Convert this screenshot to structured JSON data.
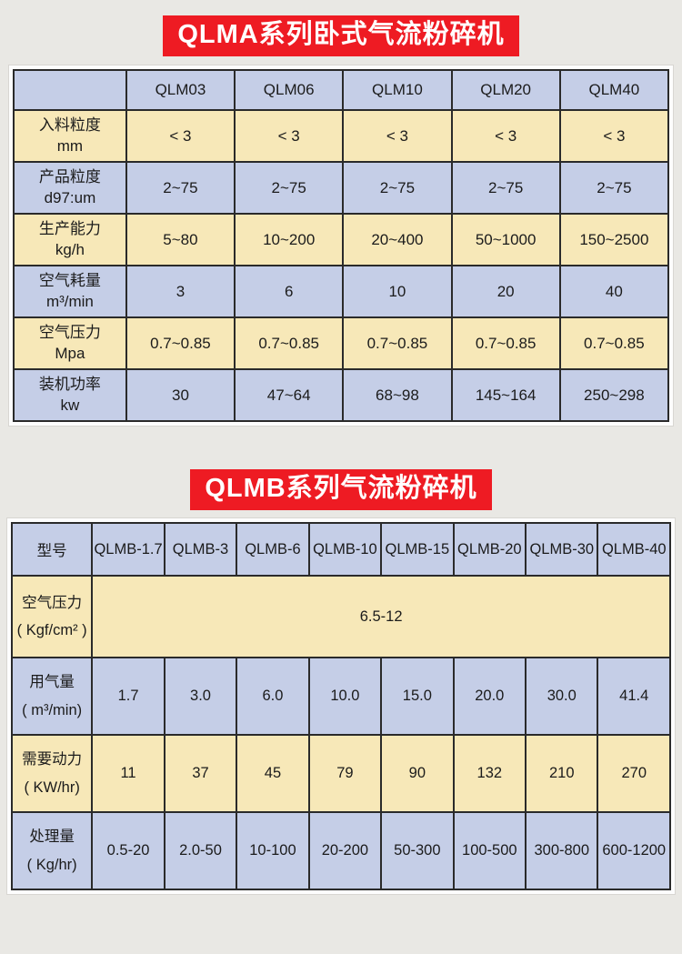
{
  "colors": {
    "title_bg": "#ee1b23",
    "title_text": "#ffffff",
    "blue_cell": "#c5cee7",
    "yellow_cell": "#f7e8b8",
    "page_bg": "#e9e8e4",
    "border": "#2a2a2a"
  },
  "table_a": {
    "title": "QLMA系列卧式气流粉碎机",
    "corner": "",
    "columns": [
      "QLM03",
      "QLM06",
      "QLM10",
      "QLM20",
      "QLM40"
    ],
    "rows": [
      {
        "label": "入料粒度",
        "unit": "mm",
        "tone": "yellow",
        "values": [
          "< 3",
          "< 3",
          "< 3",
          "< 3",
          "< 3"
        ]
      },
      {
        "label": "产品粒度",
        "unit": "d97:um",
        "tone": "blue",
        "values": [
          "2~75",
          "2~75",
          "2~75",
          "2~75",
          "2~75"
        ]
      },
      {
        "label": "生产能力",
        "unit": "kg/h",
        "tone": "yellow",
        "values": [
          "5~80",
          "10~200",
          "20~400",
          "50~1000",
          "150~2500"
        ]
      },
      {
        "label": "空气耗量",
        "unit": "m³/min",
        "tone": "blue",
        "values": [
          "3",
          "6",
          "10",
          "20",
          "40"
        ]
      },
      {
        "label": "空气压力",
        "unit": "Mpa",
        "tone": "yellow",
        "values": [
          "0.7~0.85",
          "0.7~0.85",
          "0.7~0.85",
          "0.7~0.85",
          "0.7~0.85"
        ]
      },
      {
        "label": "装机功率",
        "unit": "kw",
        "tone": "blue",
        "values": [
          "30",
          "47~64",
          "68~98",
          "145~164",
          "250~298"
        ]
      }
    ]
  },
  "table_b": {
    "title": "QLMB系列气流粉碎机",
    "header_label": "型号",
    "columns": [
      "QLMB-1.7",
      "QLMB-3",
      "QLMB-6",
      "QLMB-10",
      "QLMB-15",
      "QLMB-20",
      "QLMB-30",
      "QLMB-40"
    ],
    "rows": [
      {
        "label": "空气压力",
        "unit": "( Kgf/cm² )",
        "tone": "yellow",
        "span_value": "6.5-12"
      },
      {
        "label": "用气量",
        "unit": "( m³/min)",
        "tone": "blue",
        "values": [
          "1.7",
          "3.0",
          "6.0",
          "10.0",
          "15.0",
          "20.0",
          "30.0",
          "41.4"
        ]
      },
      {
        "label": "需要动力",
        "unit": "( KW/hr)",
        "tone": "yellow",
        "values": [
          "11",
          "37",
          "45",
          "79",
          "90",
          "132",
          "210",
          "270"
        ]
      },
      {
        "label": "处理量",
        "unit": "( Kg/hr)",
        "tone": "blue",
        "values": [
          "0.5-20",
          "2.0-50",
          "10-100",
          "20-200",
          "50-300",
          "100-500",
          "300-800",
          "600-1200"
        ]
      }
    ]
  }
}
